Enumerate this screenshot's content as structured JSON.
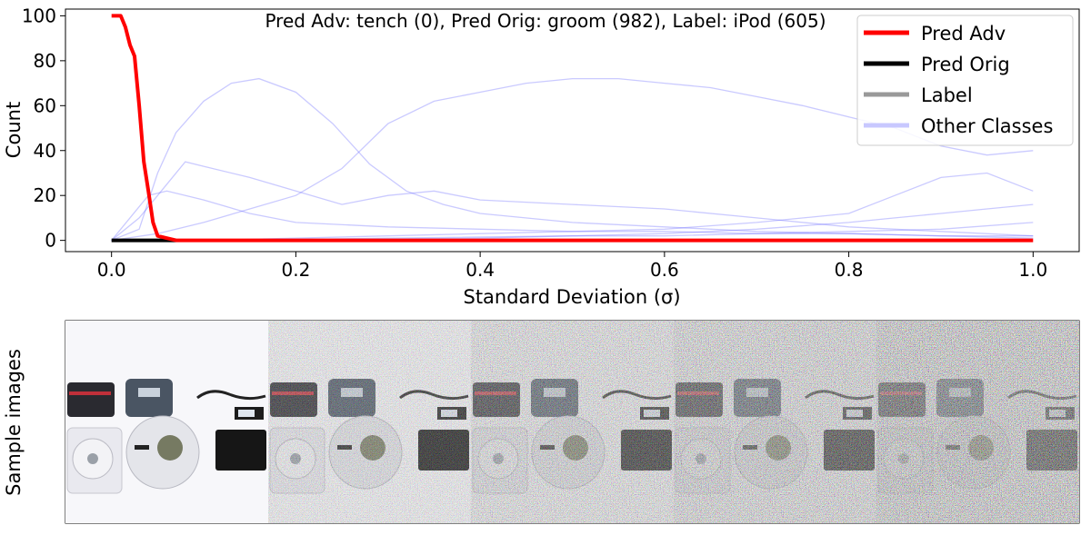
{
  "chart_data": [
    {
      "type": "line",
      "title": "Pred Adv: tench (0), Pred Orig: groom (982), Label: iPod (605)",
      "xlabel": "Standard Deviation (σ)",
      "ylabel": "Count",
      "xlim": [
        -0.05,
        1.05
      ],
      "ylim": [
        -5,
        103
      ],
      "x_ticks": [
        0.0,
        0.2,
        0.4,
        0.6,
        0.8,
        1.0
      ],
      "x_tick_labels": [
        "0.0",
        "0.2",
        "0.4",
        "0.6",
        "0.8",
        "1.0"
      ],
      "y_ticks": [
        0,
        20,
        40,
        60,
        80,
        100
      ],
      "y_tick_labels": [
        "0",
        "20",
        "40",
        "60",
        "80",
        "100"
      ],
      "grid": false,
      "legend_position": "top-right",
      "series": [
        {
          "name": "Pred Adv",
          "color": "#ff0000",
          "points": [
            [
              0.0,
              100
            ],
            [
              0.01,
              100
            ],
            [
              0.015,
              95
            ],
            [
              0.02,
              87
            ],
            [
              0.025,
              82
            ],
            [
              0.03,
              60
            ],
            [
              0.035,
              35
            ],
            [
              0.04,
              22
            ],
            [
              0.045,
              8
            ],
            [
              0.05,
              2
            ],
            [
              0.06,
              1
            ],
            [
              0.07,
              0
            ],
            [
              0.1,
              0
            ],
            [
              0.2,
              0
            ],
            [
              0.4,
              0
            ],
            [
              0.6,
              0
            ],
            [
              0.8,
              0
            ],
            [
              1.0,
              0
            ]
          ]
        },
        {
          "name": "Pred Orig",
          "color": "#000000",
          "points": [
            [
              0.0,
              0
            ],
            [
              0.02,
              0
            ],
            [
              0.04,
              0
            ],
            [
              0.06,
              0
            ],
            [
              0.07,
              0
            ]
          ]
        },
        {
          "name": "Label",
          "color": "#999999",
          "points": []
        },
        {
          "name": "Other Classes",
          "color": "#c8c8ff",
          "points": []
        }
      ],
      "other_classes": [
        [
          [
            0.0,
            0
          ],
          [
            0.03,
            5
          ],
          [
            0.05,
            30
          ],
          [
            0.07,
            48
          ],
          [
            0.1,
            62
          ],
          [
            0.13,
            70
          ],
          [
            0.16,
            72
          ],
          [
            0.2,
            66
          ],
          [
            0.24,
            52
          ],
          [
            0.28,
            34
          ],
          [
            0.32,
            22
          ],
          [
            0.36,
            16
          ],
          [
            0.4,
            12
          ],
          [
            0.5,
            8
          ],
          [
            0.6,
            6
          ],
          [
            0.7,
            4
          ],
          [
            0.8,
            3
          ],
          [
            0.9,
            2
          ],
          [
            1.0,
            2
          ]
        ],
        [
          [
            0.0,
            0
          ],
          [
            0.05,
            3
          ],
          [
            0.1,
            8
          ],
          [
            0.2,
            20
          ],
          [
            0.25,
            32
          ],
          [
            0.3,
            52
          ],
          [
            0.35,
            62
          ],
          [
            0.4,
            66
          ],
          [
            0.45,
            70
          ],
          [
            0.5,
            72
          ],
          [
            0.55,
            72
          ],
          [
            0.6,
            70
          ],
          [
            0.65,
            68
          ],
          [
            0.7,
            64
          ],
          [
            0.75,
            60
          ],
          [
            0.8,
            55
          ],
          [
            0.85,
            50
          ],
          [
            0.9,
            42
          ],
          [
            0.95,
            38
          ],
          [
            1.0,
            40
          ]
        ],
        [
          [
            0.0,
            0
          ],
          [
            0.03,
            10
          ],
          [
            0.05,
            20
          ],
          [
            0.08,
            35
          ],
          [
            0.1,
            33
          ],
          [
            0.15,
            28
          ],
          [
            0.2,
            22
          ],
          [
            0.25,
            16
          ],
          [
            0.3,
            20
          ],
          [
            0.35,
            22
          ],
          [
            0.4,
            18
          ],
          [
            0.5,
            16
          ],
          [
            0.6,
            14
          ],
          [
            0.7,
            10
          ],
          [
            0.8,
            6
          ],
          [
            0.9,
            4
          ],
          [
            1.0,
            2
          ]
        ],
        [
          [
            0.0,
            0
          ],
          [
            0.1,
            0
          ],
          [
            0.2,
            1
          ],
          [
            0.3,
            2
          ],
          [
            0.4,
            3
          ],
          [
            0.5,
            4
          ],
          [
            0.6,
            5
          ],
          [
            0.7,
            8
          ],
          [
            0.8,
            12
          ],
          [
            0.85,
            20
          ],
          [
            0.9,
            28
          ],
          [
            0.95,
            30
          ],
          [
            1.0,
            22
          ]
        ],
        [
          [
            0.0,
            0
          ],
          [
            0.04,
            20
          ],
          [
            0.06,
            22
          ],
          [
            0.1,
            18
          ],
          [
            0.15,
            12
          ],
          [
            0.2,
            8
          ],
          [
            0.3,
            6
          ],
          [
            0.4,
            5
          ],
          [
            0.5,
            4
          ],
          [
            0.6,
            4
          ],
          [
            0.7,
            3
          ],
          [
            0.8,
            3
          ],
          [
            0.9,
            2
          ],
          [
            1.0,
            1
          ]
        ],
        [
          [
            0.0,
            0
          ],
          [
            0.1,
            0
          ],
          [
            0.3,
            1
          ],
          [
            0.5,
            2
          ],
          [
            0.6,
            3
          ],
          [
            0.7,
            5
          ],
          [
            0.8,
            8
          ],
          [
            0.85,
            10
          ],
          [
            0.9,
            12
          ],
          [
            0.95,
            14
          ],
          [
            1.0,
            16
          ]
        ],
        [
          [
            0.0,
            0
          ],
          [
            0.2,
            0
          ],
          [
            0.4,
            1
          ],
          [
            0.5,
            2
          ],
          [
            0.6,
            2
          ],
          [
            0.7,
            3
          ],
          [
            0.8,
            4
          ],
          [
            0.9,
            5
          ],
          [
            1.0,
            8
          ]
        ]
      ]
    }
  ],
  "sample_panel": {
    "ylabel": "Sample images"
  }
}
